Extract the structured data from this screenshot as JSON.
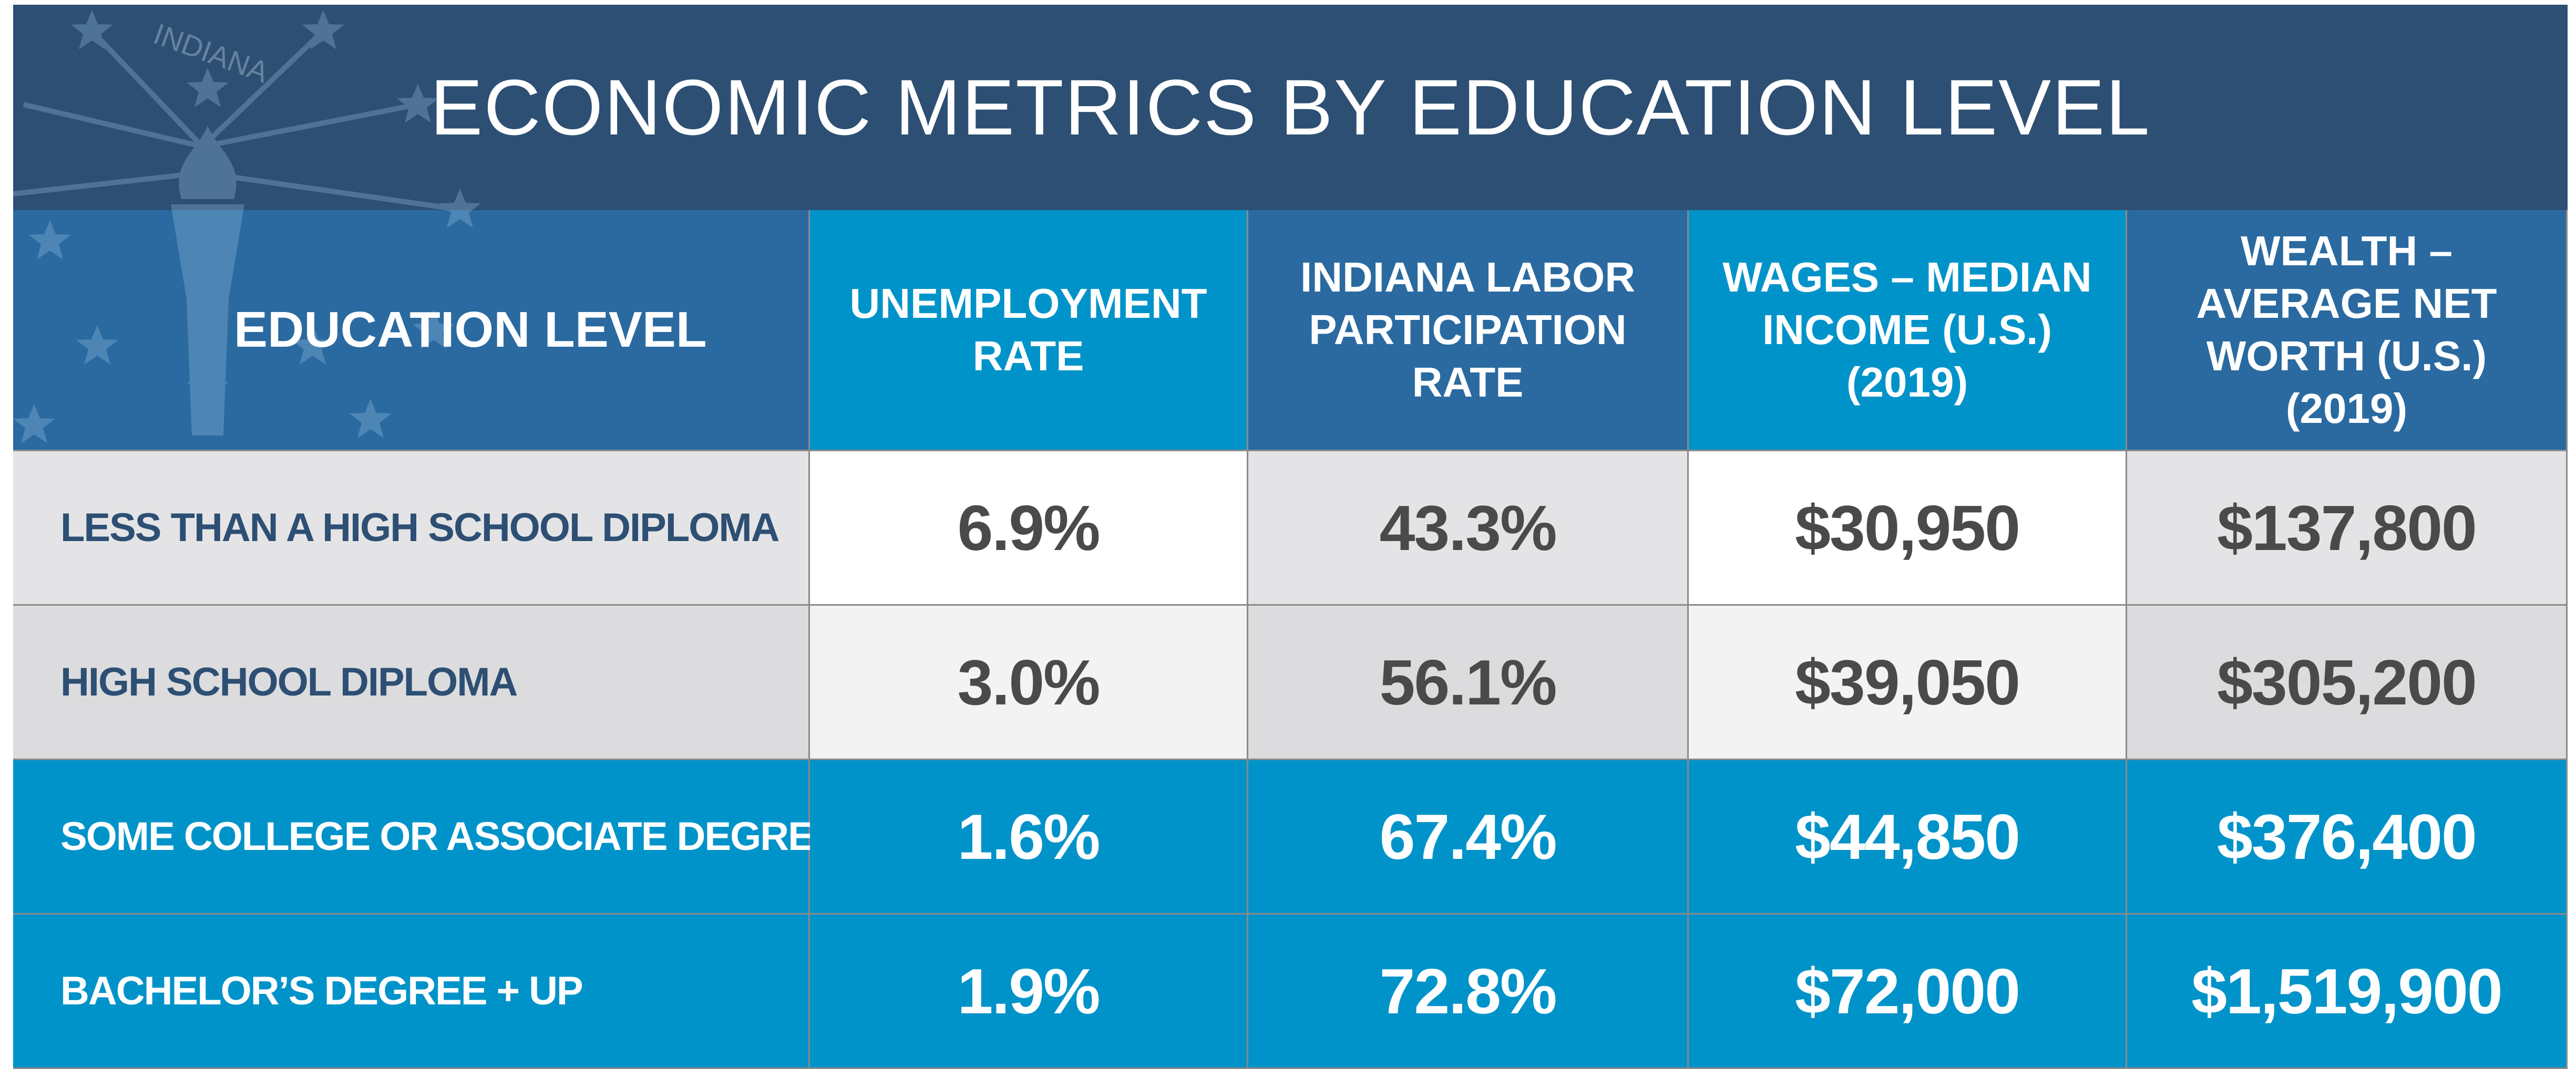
{
  "title": "ECONOMIC METRICS BY EDUCATION LEVEL",
  "emblem": {
    "label": "INDIANA"
  },
  "table": {
    "header": [
      "EDUCATION LEVEL",
      "UNEMPLOYMENT RATE",
      "INDIANA LABOR PARTICIPATION RATE",
      "WAGES – MEDIAN INCOME (U.S.) (2019)",
      "WEALTH – AVERAGE NET WORTH (U.S.) (2019)"
    ],
    "rows": [
      [
        "LESS THAN A HIGH SCHOOL DIPLOMA",
        "6.9%",
        "43.3%",
        "$30,950",
        "$137,800"
      ],
      [
        "HIGH SCHOOL DIPLOMA",
        "3.0%",
        "56.1%",
        "$39,050",
        "$305,200"
      ],
      [
        "SOME COLLEGE OR ASSOCIATE DEGREE",
        "1.6%",
        "67.4%",
        "$44,850",
        "$376,400"
      ],
      [
        "BACHELOR’S  DEGREE + UP",
        "1.9%",
        "72.8%",
        "$72,000",
        "$1,519,900"
      ]
    ]
  }
}
